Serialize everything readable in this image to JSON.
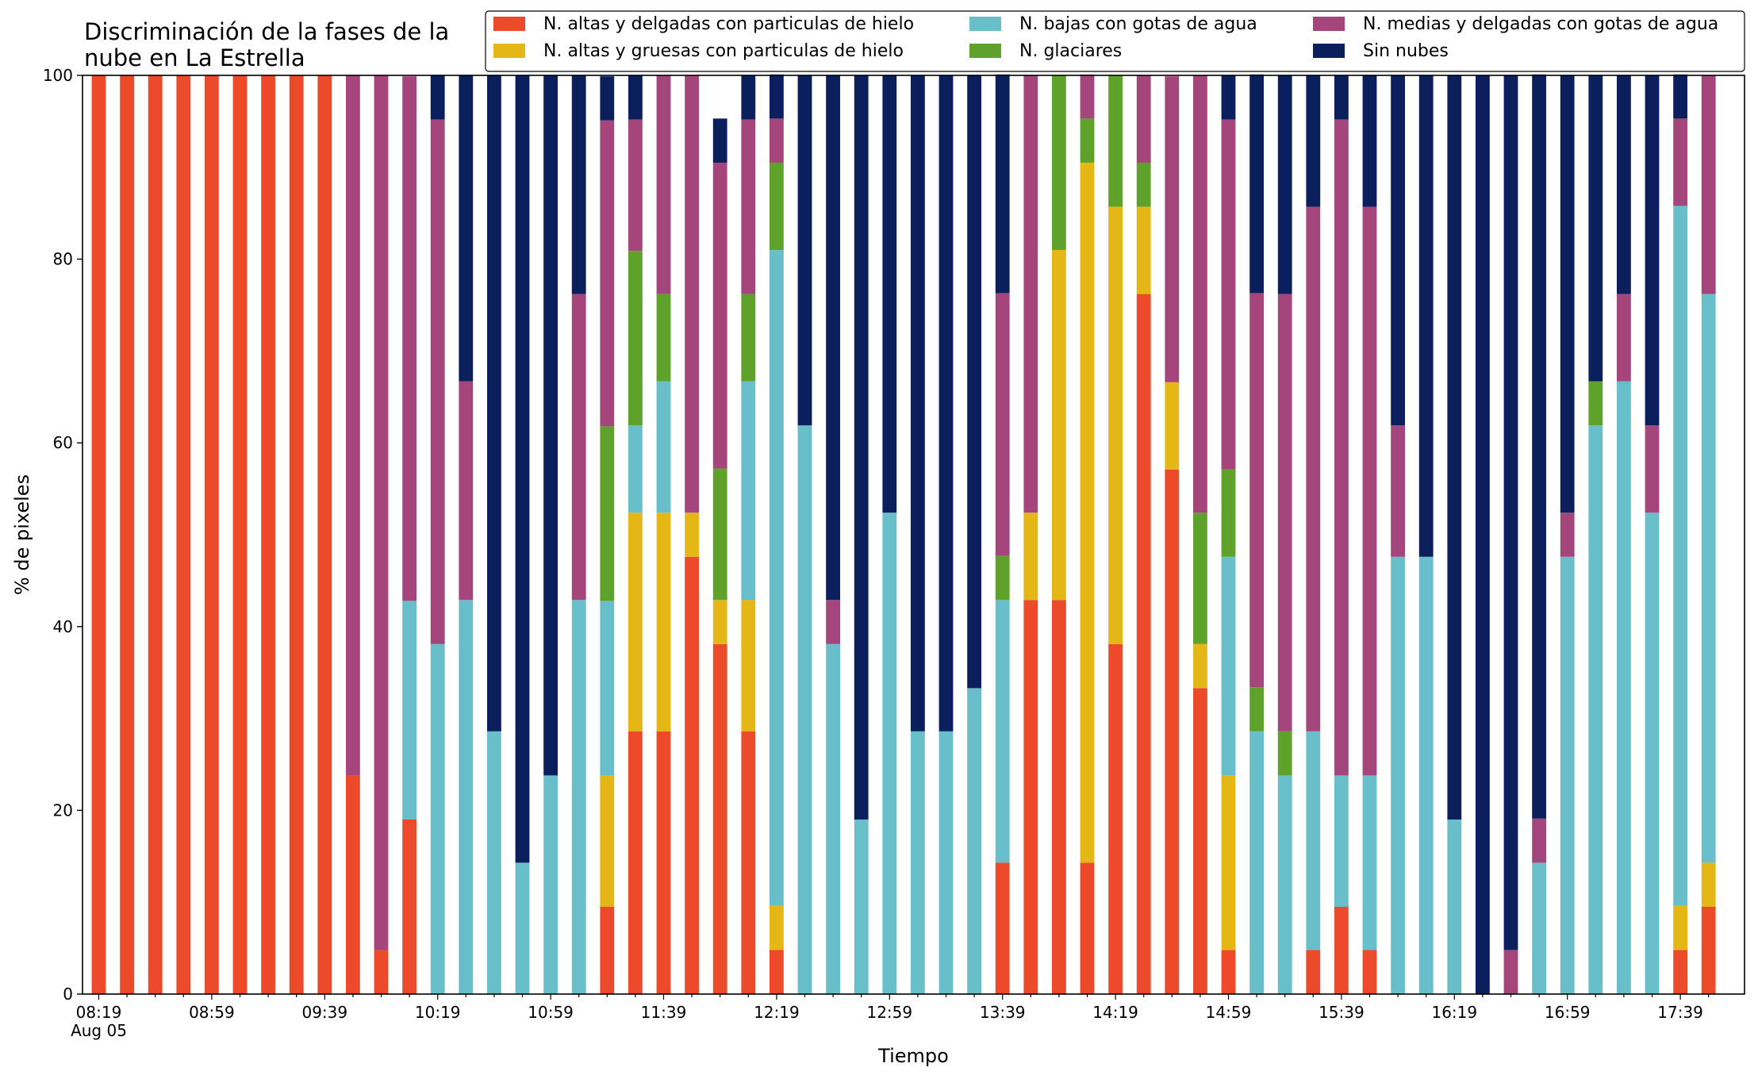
{
  "chart_data": {
    "type": "bar",
    "stacked": true,
    "title_lines": [
      "Discriminación de la fases de la",
      "nube en La Estrella"
    ],
    "xlabel": "Tiempo",
    "ylabel": "% de pixeles",
    "ylim": [
      0,
      100
    ],
    "yticks": [
      "0",
      "20",
      "40",
      "60",
      "80",
      "100"
    ],
    "grid": false,
    "legend_position": "top-right",
    "x_tick_labels": [
      "08:19",
      "08:59",
      "09:39",
      "10:19",
      "10:59",
      "11:39",
      "12:19",
      "12:59",
      "13:39",
      "14:19",
      "14:59",
      "15:39",
      "16:19",
      "16:59",
      "17:39"
    ],
    "x_date_label": "Aug 05",
    "categories": [
      "08:19",
      "08:29",
      "08:39",
      "08:49",
      "08:59",
      "09:09",
      "09:19",
      "09:29",
      "09:39",
      "09:49",
      "09:59",
      "10:09",
      "10:19",
      "10:29",
      "10:39",
      "10:49",
      "10:59",
      "11:09",
      "11:19",
      "11:29",
      "11:39",
      "11:49",
      "11:59",
      "12:09",
      "12:19",
      "12:29",
      "12:39",
      "12:49",
      "12:59",
      "13:09",
      "13:19",
      "13:29",
      "13:39",
      "13:49",
      "13:59",
      "14:09",
      "14:19",
      "14:29",
      "14:39",
      "14:49",
      "14:59",
      "15:09",
      "15:19",
      "15:29",
      "15:39",
      "15:49",
      "15:59",
      "16:09",
      "16:19",
      "16:29",
      "16:39",
      "16:49",
      "16:59",
      "17:09",
      "17:19",
      "17:29",
      "17:39",
      "17:49"
    ],
    "series": [
      {
        "name": "N. altas y delgadas con particulas de hielo",
        "color": "#ec4a2b",
        "values": [
          100,
          100,
          100,
          100,
          100,
          100,
          100,
          100,
          100,
          23.8,
          4.8,
          19,
          0,
          0,
          0,
          0,
          0,
          0,
          9.5,
          28.6,
          28.6,
          47.6,
          38.1,
          28.6,
          4.8,
          0,
          0,
          0,
          0,
          0,
          0,
          0,
          14.3,
          42.9,
          42.9,
          14.3,
          38.1,
          76.2,
          57.1,
          33.3,
          4.8,
          0,
          0,
          4.8,
          9.5,
          4.8,
          0,
          0,
          0,
          0,
          0,
          0,
          0,
          0,
          0,
          0,
          4.8,
          9.5
        ]
      },
      {
        "name": "N. altas y gruesas con particulas de hielo",
        "color": "#e4b717",
        "values": [
          0,
          0,
          0,
          0,
          0,
          0,
          0,
          0,
          0,
          0,
          0,
          0,
          0,
          0,
          0,
          0,
          0,
          0,
          14.3,
          23.8,
          23.8,
          4.8,
          4.8,
          14.3,
          4.8,
          0,
          0,
          0,
          0,
          0,
          0,
          0,
          0,
          9.5,
          38.1,
          76.2,
          47.6,
          9.5,
          9.5,
          4.8,
          19,
          0,
          0,
          0,
          0,
          0,
          0,
          0,
          0,
          0,
          0,
          0,
          0,
          0,
          0,
          0,
          4.8,
          4.8
        ]
      },
      {
        "name": "N. bajas con gotas de agua",
        "color": "#68bfca",
        "values": [
          0,
          0,
          0,
          0,
          0,
          0,
          0,
          0,
          0,
          0,
          0,
          23.8,
          38.1,
          42.9,
          28.6,
          14.3,
          23.8,
          42.9,
          19,
          9.5,
          14.3,
          0,
          0,
          23.8,
          71.4,
          61.9,
          38.1,
          19,
          52.4,
          28.6,
          28.6,
          33.3,
          28.6,
          0,
          0,
          0,
          0,
          0,
          0,
          0,
          23.8,
          28.6,
          23.8,
          23.8,
          14.3,
          19,
          47.6,
          47.6,
          19,
          0,
          0,
          14.3,
          47.6,
          61.9,
          66.7,
          52.4,
          76.2,
          61.9
        ]
      },
      {
        "name": "N. glaciares",
        "color": "#5fa22b",
        "values": [
          0,
          0,
          0,
          0,
          0,
          0,
          0,
          0,
          0,
          0,
          0,
          0,
          0,
          0,
          0,
          0,
          0,
          0,
          19,
          19,
          9.5,
          0,
          14.3,
          9.5,
          9.5,
          0,
          0,
          0,
          0,
          0,
          0,
          0,
          4.8,
          0,
          19,
          4.8,
          14.3,
          4.8,
          0,
          14.3,
          9.5,
          4.8,
          4.8,
          0,
          0,
          0,
          0,
          0,
          0,
          0,
          0,
          0,
          0,
          4.8,
          0,
          0,
          0,
          0
        ]
      },
      {
        "name": "N. medias y delgadas con gotas de agua",
        "color": "#a4457c",
        "values": [
          0,
          0,
          0,
          0,
          0,
          0,
          0,
          0,
          0,
          76.2,
          95.2,
          57.1,
          57.1,
          23.8,
          0,
          0,
          0,
          33.3,
          33.3,
          14.3,
          23.8,
          47.6,
          33.3,
          19,
          4.8,
          0,
          4.8,
          0,
          0,
          0,
          0,
          0,
          28.6,
          47.6,
          0,
          4.8,
          0,
          9.5,
          33.3,
          47.6,
          38.1,
          42.9,
          47.6,
          57.1,
          71.4,
          61.9,
          14.3,
          0,
          0,
          0,
          4.8,
          4.8,
          4.8,
          0,
          9.5,
          9.5,
          9.5,
          23.8
        ]
      },
      {
        "name": "Sin nubes",
        "color": "#0a1f5c",
        "values": [
          0,
          0,
          0,
          0,
          0,
          0,
          0,
          0,
          0,
          0,
          0,
          0,
          4.8,
          33.3,
          71.4,
          85.7,
          76.2,
          23.8,
          4.8,
          4.8,
          0,
          0,
          4.8,
          4.8,
          4.8,
          38.1,
          57.1,
          81,
          47.6,
          71.4,
          71.4,
          66.7,
          23.8,
          0,
          0,
          0,
          0,
          0,
          0,
          0,
          4.8,
          23.8,
          23.8,
          14.3,
          4.8,
          14.3,
          38.1,
          52.4,
          81,
          100,
          95.2,
          81,
          47.6,
          33.3,
          23.8,
          38.1,
          4.8,
          0
        ]
      }
    ]
  }
}
